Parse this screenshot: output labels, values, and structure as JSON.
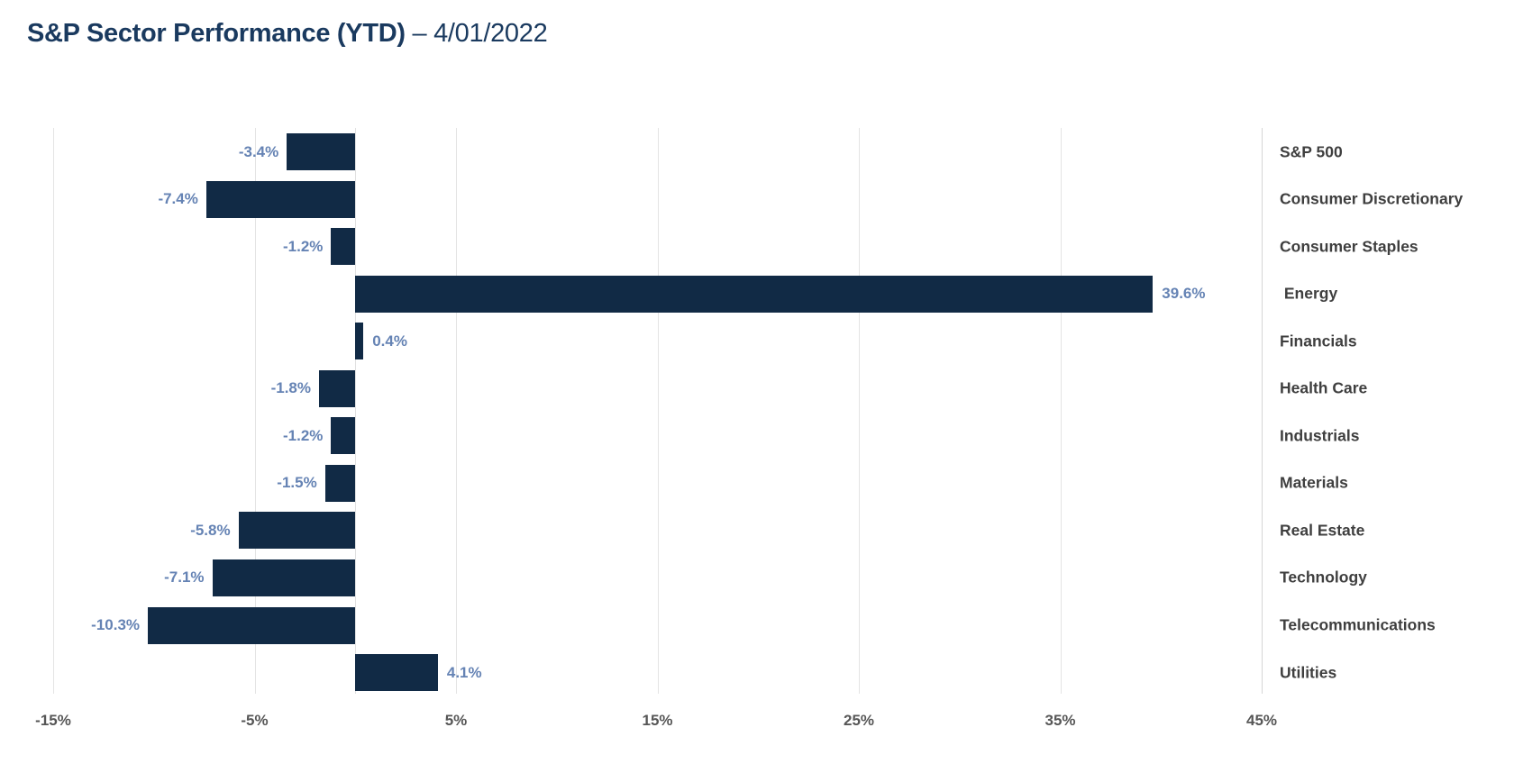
{
  "title": {
    "main": "S&P Sector Performance (YTD)",
    "suffix": " – 4/01/2022"
  },
  "chart_data": {
    "type": "bar",
    "orientation": "horizontal",
    "title": "S&P Sector Performance (YTD) – 4/01/2022",
    "categories": [
      "S&P 500",
      "Consumer Discretionary",
      "Consumer Staples",
      " Energy",
      "Financials",
      "Health Care",
      "Industrials",
      "Materials",
      "Real Estate",
      "Technology",
      "Telecommunications",
      "Utilities"
    ],
    "values": [
      -3.4,
      -7.4,
      -1.2,
      39.6,
      0.4,
      -1.8,
      -1.2,
      -1.5,
      -5.8,
      -7.1,
      -10.3,
      4.1
    ],
    "value_labels": [
      "-3.4%",
      "-7.4%",
      "-1.2%",
      "39.6%",
      "0.4%",
      "-1.8%",
      "-1.2%",
      "-1.5%",
      "-5.8%",
      "-7.1%",
      "-10.3%",
      "4.1%"
    ],
    "x_ticks": [
      "-15%",
      "-5%",
      "5%",
      "15%",
      "25%",
      "35%",
      "45%"
    ],
    "x_tick_values": [
      -15,
      -5,
      5,
      15,
      25,
      35,
      45
    ],
    "xlim": [
      -15,
      45
    ],
    "grid": true,
    "legend": "none",
    "colors": {
      "bar_fill": "#112A45",
      "value_label": "#6583B4",
      "category_label": "#3F3F3F",
      "tick_label": "#565656",
      "title": "#1A3A5F",
      "gridline": "#E4E4E4",
      "background": "#FFFFFF"
    }
  }
}
